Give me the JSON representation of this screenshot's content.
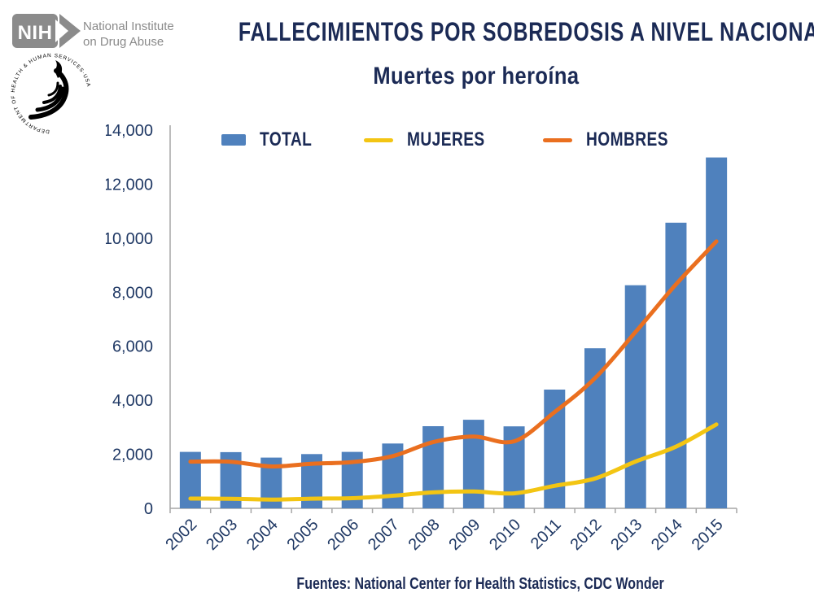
{
  "header": {
    "nih_logo": {
      "acronym": "NIH",
      "org_line1": "National Institute",
      "org_line2": "on Drug Abuse"
    },
    "hhs_seal": {
      "ring_text": "DEPARTMENT OF HEALTH & HUMAN SERVICES·USA"
    },
    "title": "FALLECIMIENTOS POR SOBREDOSIS A NIVEL NACIONAL",
    "subtitle": "Muertes por heroína"
  },
  "chart_data": {
    "type": "bar+line",
    "title": "Muertes por heroína",
    "categories": [
      "2002",
      "2003",
      "2004",
      "2005",
      "2006",
      "2007",
      "2008",
      "2009",
      "2010",
      "2011",
      "2012",
      "2013",
      "2014",
      "2015"
    ],
    "series": [
      {
        "name": "TOTAL",
        "type": "bar",
        "color": "#4f81bd",
        "values": [
          2089,
          2080,
          1878,
          2009,
          2088,
          2399,
          3041,
          3278,
          3036,
          4397,
          5925,
          8257,
          10574,
          12989
        ]
      },
      {
        "name": "MUJERES",
        "type": "line",
        "color": "#f3c513",
        "values": [
          360,
          356,
          326,
          358,
          376,
          467,
          591,
          623,
          554,
          834,
          1104,
          1732,
          2282,
          3108
        ]
      },
      {
        "name": "HOMBRES",
        "type": "line",
        "color": "#ea6f1f",
        "values": [
          1729,
          1724,
          1552,
          1651,
          1712,
          1932,
          2450,
          2655,
          2482,
          3563,
          4821,
          6525,
          8292,
          9881
        ]
      }
    ],
    "ylim": [
      0,
      14000
    ],
    "ytick_step": 2000,
    "ytick_labels": [
      "0",
      "2,000",
      "4,000",
      "6,000",
      "8,000",
      "10,000",
      "12,000",
      "14,000"
    ],
    "legend_position": "top-center",
    "grid": false,
    "axis_color": "#a6a6a6",
    "label_color": "#1f3864"
  },
  "footer": {
    "source": "Fuentes: National Center for Health Statistics, CDC Wonder"
  }
}
